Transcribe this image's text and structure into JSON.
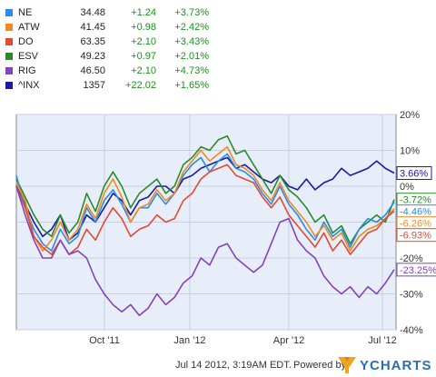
{
  "legend": [
    {
      "symbol": "NE",
      "price": "34.48",
      "change": "+1.24",
      "percent": "+3.73%",
      "color": "#2a8ce8"
    },
    {
      "symbol": "ATW",
      "price": "41.45",
      "change": "+0.98",
      "percent": "+2.42%",
      "color": "#f08a1d"
    },
    {
      "symbol": "DO",
      "price": "63.35",
      "change": "+2.10",
      "percent": "+3.43%",
      "color": "#e34a33"
    },
    {
      "symbol": "ESV",
      "price": "49.23",
      "change": "+0.97",
      "percent": "+2.01%",
      "color": "#2a8a2a"
    },
    {
      "symbol": "RIG",
      "price": "46.50",
      "change": "+2.10",
      "percent": "+4.73%",
      "color": "#8244b8"
    },
    {
      "symbol": "^INX",
      "price": "1357",
      "change": "+22.02",
      "percent": "+1.65%",
      "color": "#1a1aa6"
    }
  ],
  "footer": {
    "timestamp": "Jul 14 2012, 3:19AM EDT.",
    "powered_by": "Powered by",
    "logo_text": "YCHARTS"
  },
  "chart_data": {
    "type": "line",
    "x_ticks": [
      "Oct '11",
      "Jan '12",
      "Apr '12",
      "Jul '12"
    ],
    "y_ticks": [
      "20%",
      "10%",
      "0%",
      "-10%",
      "-20%",
      "-30%",
      "-40%"
    ],
    "ylim": [
      -40,
      20
    ],
    "grid": true,
    "series": [
      {
        "name": "^INX",
        "end_label": "3.66%",
        "color": "#1a1aa6",
        "values": [
          0,
          -5,
          -10,
          -14,
          -12,
          -8,
          -15,
          -13,
          -8,
          -10,
          -6,
          -2,
          -4,
          -8,
          -4,
          -3,
          0,
          0,
          -2,
          2,
          3,
          5,
          6,
          7,
          8,
          5,
          6,
          4,
          2,
          1,
          3,
          0,
          -1,
          2,
          -1,
          1,
          2,
          5,
          3,
          4,
          5,
          7,
          5,
          3.66
        ]
      },
      {
        "name": "ESV",
        "end_label": "-3.72%",
        "color": "#2a8a2a",
        "values": [
          2,
          -3,
          -8,
          -12,
          -14,
          -8,
          -13,
          -10,
          -2,
          -7,
          0,
          4,
          0,
          -6,
          -2,
          0,
          2,
          -2,
          0,
          6,
          8,
          11,
          10,
          13,
          14,
          9,
          10,
          6,
          2,
          -2,
          3,
          -1,
          -3,
          -6,
          -10,
          -8,
          -13,
          -11,
          -16,
          -12,
          -10,
          -8,
          -10,
          -3.72
        ]
      },
      {
        "name": "NE",
        "end_label": "-4.46%",
        "color": "#2a8ce8",
        "values": [
          3,
          -6,
          -12,
          -16,
          -18,
          -12,
          -16,
          -14,
          -6,
          -10,
          -4,
          -1,
          -5,
          -10,
          -6,
          -6,
          -2,
          -5,
          -2,
          3,
          6,
          8,
          4,
          7,
          9,
          5,
          4,
          2,
          -2,
          -5,
          0,
          -5,
          -8,
          -12,
          -15,
          -10,
          -14,
          -12,
          -17,
          -12,
          -9,
          -10,
          -8,
          -4.46
        ]
      },
      {
        "name": "ATW",
        "end_label": "-6.26%",
        "color": "#f08a1d",
        "values": [
          1,
          -4,
          -14,
          -18,
          -15,
          -10,
          -15,
          -12,
          -5,
          -9,
          -2,
          2,
          -3,
          -10,
          -6,
          -5,
          -1,
          -4,
          -2,
          4,
          7,
          10,
          7,
          9,
          11,
          6,
          5,
          3,
          -1,
          -4,
          1,
          -4,
          -7,
          -10,
          -14,
          -11,
          -15,
          -13,
          -18,
          -14,
          -12,
          -11,
          -9,
          -6.26
        ]
      },
      {
        "name": "DO",
        "end_label": "-6.93%",
        "color": "#e34a33",
        "values": [
          0,
          -6,
          -14,
          -17,
          -19,
          -15,
          -19,
          -17,
          -12,
          -15,
          -10,
          -6,
          -9,
          -14,
          -12,
          -11,
          -8,
          -10,
          -9,
          -4,
          -2,
          2,
          4,
          5,
          6,
          3,
          2,
          1,
          -3,
          -6,
          -3,
          -8,
          -11,
          -14,
          -17,
          -13,
          -18,
          -15,
          -19,
          -16,
          -13,
          -12,
          -9,
          -6.93
        ]
      },
      {
        "name": "RIG",
        "end_label": "-23.25%",
        "color": "#8244b8",
        "values": [
          0,
          -8,
          -15,
          -20,
          -20,
          -15,
          -19,
          -18,
          -20,
          -26,
          -30,
          -33,
          -35,
          -33,
          -36,
          -34,
          -30,
          -33,
          -31,
          -27,
          -25,
          -20,
          -22,
          -17,
          -16,
          -20,
          -22,
          -24,
          -22,
          -16,
          -10,
          -9,
          -15,
          -18,
          -20,
          -25,
          -28,
          -30,
          -28,
          -31,
          -28,
          -30,
          -27,
          -23.25
        ]
      }
    ]
  }
}
